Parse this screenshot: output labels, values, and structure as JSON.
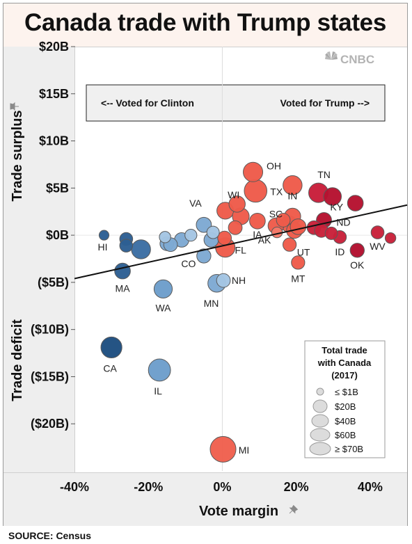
{
  "title": "Canada trade with Trump states",
  "source": "SOURCE: Census",
  "logo": "CNBC",
  "chart_data": {
    "type": "scatter",
    "xlabel": "Vote margin",
    "ylabel_top": "Trade surplus",
    "ylabel_bottom": "Trade deficit",
    "xlim": [
      -0.4,
      0.5
    ],
    "ylim": [
      -25,
      20
    ],
    "x_ticks": [
      {
        "value": -0.4,
        "label": "-40%"
      },
      {
        "value": -0.2,
        "label": "-20%"
      },
      {
        "value": 0.0,
        "label": "0%"
      },
      {
        "value": 0.2,
        "label": "20%"
      },
      {
        "value": 0.4,
        "label": "40%"
      }
    ],
    "y_ticks": [
      {
        "value": 20,
        "label": "$20B"
      },
      {
        "value": 15,
        "label": "$15B"
      },
      {
        "value": 10,
        "label": "$10B"
      },
      {
        "value": 5,
        "label": "$5B"
      },
      {
        "value": 0,
        "label": "$0B"
      },
      {
        "value": -5,
        "label": "($5B)"
      },
      {
        "value": -10,
        "label": "($10B)"
      },
      {
        "value": -15,
        "label": "($15B)"
      },
      {
        "value": -20,
        "label": "($20B)"
      }
    ],
    "annotation": {
      "left": "<-- Voted for Clinton",
      "right": "Voted for Trump -->"
    },
    "trendline": [
      [
        -0.4,
        -4.6
      ],
      [
        0.5,
        3.2
      ]
    ],
    "size_legend": {
      "title_lines": [
        "Total trade",
        "with Canada",
        "(2017)"
      ],
      "entries": [
        {
          "label": "≤ $1B",
          "value": 1
        },
        {
          "label": "$20B",
          "value": 20
        },
        {
          "label": "$40B",
          "value": 40
        },
        {
          "label": "$60B",
          "value": 60
        },
        {
          "label": "≥ $70B",
          "value": 70
        }
      ]
    },
    "color_scale": {
      "clinton_strong": "#1e4e80",
      "clinton_lean": "#7ea9d3",
      "trump_lean": "#f0604e",
      "trump_strong": "#b20f2e"
    },
    "points": [
      {
        "label": "HI",
        "x": -0.32,
        "y": 0.0,
        "trade": 1,
        "color": "#2d5f93"
      },
      {
        "label": "",
        "x": -0.26,
        "y": -0.4,
        "trade": 6,
        "color": "#2d5f93"
      },
      {
        "label": "",
        "x": -0.26,
        "y": -1.1,
        "trade": 6,
        "color": "#2d5f93"
      },
      {
        "label": "",
        "x": -0.22,
        "y": -1.5,
        "trade": 28,
        "color": "#3c6ea3"
      },
      {
        "label": "MA",
        "x": -0.27,
        "y": -3.8,
        "trade": 14,
        "color": "#2d5f93"
      },
      {
        "label": "CA",
        "x": -0.3,
        "y": -11.9,
        "trade": 38,
        "color": "#1e4e80"
      },
      {
        "label": "IL",
        "x": -0.17,
        "y": -14.3,
        "trade": 45,
        "color": "#6d9ecb"
      },
      {
        "label": "WA",
        "x": -0.16,
        "y": -5.7,
        "trade": 24,
        "color": "#6d9ecb"
      },
      {
        "label": "",
        "x": -0.155,
        "y": -0.2,
        "trade": 3,
        "color": "#a4c5e3"
      },
      {
        "label": "",
        "x": -0.15,
        "y": -0.9,
        "trade": 8,
        "color": "#7ea9d3"
      },
      {
        "label": "",
        "x": -0.14,
        "y": -1.0,
        "trade": 8,
        "color": "#7ea9d3"
      },
      {
        "label": "",
        "x": -0.11,
        "y": -0.5,
        "trade": 10,
        "color": "#7ea9d3"
      },
      {
        "label": "",
        "x": -0.085,
        "y": 0.0,
        "trade": 4,
        "color": "#a4c5e3"
      },
      {
        "label": "CO",
        "x": -0.05,
        "y": -2.2,
        "trade": 9,
        "color": "#7ea9d3"
      },
      {
        "label": "VA",
        "x": -0.05,
        "y": 1.1,
        "trade": 12,
        "color": "#7ea9d3"
      },
      {
        "label": "",
        "x": -0.03,
        "y": -0.5,
        "trade": 10,
        "color": "#7ea9d3"
      },
      {
        "label": "",
        "x": -0.025,
        "y": 0.3,
        "trade": 5,
        "color": "#a4c5e3"
      },
      {
        "label": "MN",
        "x": -0.015,
        "y": -5.1,
        "trade": 22,
        "color": "#7ea9d3"
      },
      {
        "label": "NH",
        "x": 0.003,
        "y": -4.8,
        "trade": 8,
        "color": "#a4c5e3"
      },
      {
        "label": "MI",
        "x": 0.002,
        "y": -22.7,
        "trade": 70,
        "color": "#f0604e"
      },
      {
        "label": "FL",
        "x": 0.008,
        "y": -1.3,
        "trade": 30,
        "color": "#ee5b4a"
      },
      {
        "label": "",
        "x": 0.006,
        "y": -0.3,
        "trade": 8,
        "color": "#ee5b4a"
      },
      {
        "label": "WI",
        "x": 0.008,
        "y": 2.6,
        "trade": 18,
        "color": "#ee5b4a"
      },
      {
        "label": "",
        "x": 0.035,
        "y": 0.8,
        "trade": 8,
        "color": "#ee5b4a"
      },
      {
        "label": "",
        "x": 0.04,
        "y": 3.3,
        "trade": 16,
        "color": "#ee5b4a"
      },
      {
        "label": "",
        "x": 0.05,
        "y": 2.0,
        "trade": 18,
        "color": "#ee5b4a"
      },
      {
        "label": "OH",
        "x": 0.083,
        "y": 6.7,
        "trade": 30,
        "color": "#ee5b4a"
      },
      {
        "label": "TX",
        "x": 0.09,
        "y": 4.7,
        "trade": 48,
        "color": "#ee5b4a"
      },
      {
        "label": "IA",
        "x": 0.095,
        "y": 1.5,
        "trade": 14,
        "color": "#ee5b4a"
      },
      {
        "label": "SC",
        "x": 0.145,
        "y": 1.0,
        "trade": 14,
        "color": "#ee5b4a"
      },
      {
        "label": "AK",
        "x": 0.148,
        "y": 0.3,
        "trade": 2,
        "color": "#f47a6a"
      },
      {
        "label": "",
        "x": 0.165,
        "y": 1.6,
        "trade": 8,
        "color": "#ee5b4a"
      },
      {
        "label": "",
        "x": 0.18,
        "y": 1.2,
        "trade": 16,
        "color": "#ee5b4a"
      },
      {
        "label": "IN",
        "x": 0.19,
        "y": 5.3,
        "trade": 28,
        "color": "#ee5b4a"
      },
      {
        "label": "",
        "x": 0.19,
        "y": 2.0,
        "trade": 16,
        "color": "#ee5b4a"
      },
      {
        "label": "UT",
        "x": 0.182,
        "y": -1.0,
        "trade": 7,
        "color": "#ee5b4a"
      },
      {
        "label": "",
        "x": 0.195,
        "y": 0.5,
        "trade": 14,
        "color": "#ee5b4a"
      },
      {
        "label": "",
        "x": 0.205,
        "y": 0.9,
        "trade": 14,
        "color": "#ee5b4a"
      },
      {
        "label": "MT",
        "x": 0.205,
        "y": -2.9,
        "trade": 7,
        "color": "#ee5b4a"
      },
      {
        "label": "",
        "x": 0.248,
        "y": 0.8,
        "trade": 8,
        "color": "#c8213a"
      },
      {
        "label": "TN",
        "x": 0.26,
        "y": 4.5,
        "trade": 30,
        "color": "#c81e3a"
      },
      {
        "label": "",
        "x": 0.268,
        "y": 0.5,
        "trade": 8,
        "color": "#c8213a"
      },
      {
        "label": "ND",
        "x": 0.275,
        "y": 1.6,
        "trade": 12,
        "color": "#b6122f"
      },
      {
        "label": "KY",
        "x": 0.298,
        "y": 4.1,
        "trade": 22,
        "color": "#b6122f"
      },
      {
        "label": "",
        "x": 0.295,
        "y": 0.2,
        "trade": 5,
        "color": "#c8213a"
      },
      {
        "label": "ID",
        "x": 0.318,
        "y": -0.2,
        "trade": 6,
        "color": "#c8213a"
      },
      {
        "label": "",
        "x": 0.36,
        "y": 3.4,
        "trade": 14,
        "color": "#b6122f"
      },
      {
        "label": "OK",
        "x": 0.365,
        "y": -1.6,
        "trade": 9,
        "color": "#b20f2e"
      },
      {
        "label": "WV",
        "x": 0.42,
        "y": 0.3,
        "trade": 6,
        "color": "#c8213a"
      },
      {
        "label": "",
        "x": 0.455,
        "y": -0.3,
        "trade": 2,
        "color": "#c8213a"
      }
    ]
  }
}
